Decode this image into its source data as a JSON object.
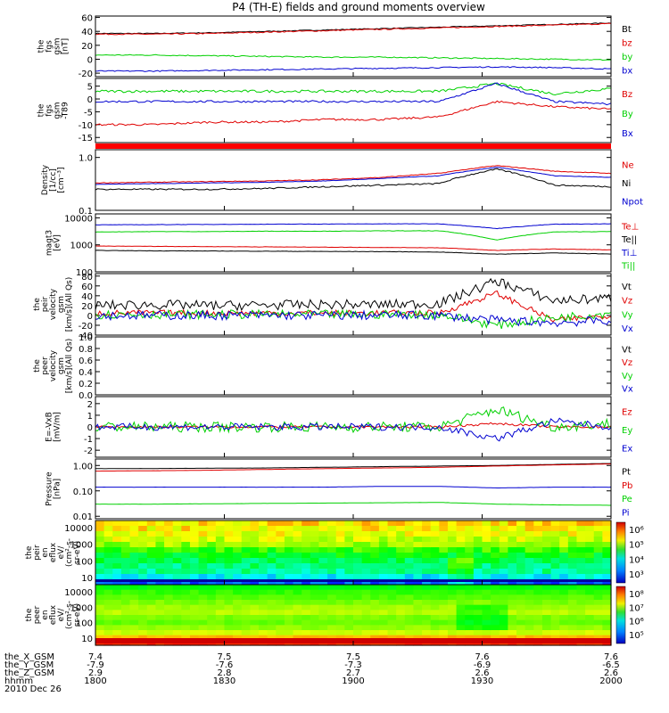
{
  "title": "P4 (TH-E) fields and ground moments overview",
  "date": "2010 Dec 26",
  "colors": {
    "black": "#000000",
    "red": "#e00000",
    "green": "#00d000",
    "blue": "#0000d0"
  },
  "ephem": {
    "rows": [
      {
        "label": "the_X_GSM",
        "values": [
          "7.4",
          "7.5",
          "7.5",
          "7.6",
          "7.6"
        ]
      },
      {
        "label": "the_Y_GSM",
        "values": [
          "-7.9",
          "-7.6",
          "-7.3",
          "-6.9",
          "-6.5"
        ]
      },
      {
        "label": "the_Z_GSM",
        "values": [
          "2.9",
          "2.8",
          "2.7",
          "2.6",
          "2.6"
        ]
      },
      {
        "label": "hhmm",
        "values": [
          "1800",
          "1830",
          "1900",
          "1930",
          "2000"
        ]
      }
    ]
  },
  "colorbar1": {
    "labels": [
      "10⁶",
      "10⁵",
      "10⁴",
      "10³"
    ]
  },
  "colorbar2": {
    "labels": [
      "10⁸",
      "10⁷",
      "10⁶",
      "10⁵"
    ]
  },
  "chart_data": [
    {
      "type": "line",
      "ylabel": [
        "the",
        "fgs",
        "gsm",
        "[nT]"
      ],
      "ticks": [
        "60",
        "40",
        "20",
        "0",
        "-20"
      ],
      "ylim": [
        -25,
        62
      ],
      "series": [
        {
          "name": "Bt",
          "color": "black",
          "values": [
            37,
            37,
            38,
            40,
            42,
            44,
            46,
            48,
            50,
            52
          ],
          "noise": 0.6
        },
        {
          "name": "bz",
          "color": "red",
          "values": [
            36,
            36,
            37,
            39,
            41,
            43,
            45,
            47,
            49,
            51
          ],
          "noise": 0.8
        },
        {
          "name": "by",
          "color": "green",
          "values": [
            6,
            6,
            5,
            4,
            3,
            3,
            2,
            1,
            0,
            -1
          ],
          "noise": 0.8
        },
        {
          "name": "bx",
          "color": "blue",
          "values": [
            -17,
            -17,
            -16,
            -15,
            -14,
            -13,
            -12,
            -11,
            -12,
            -14
          ],
          "noise": 0.8
        }
      ]
    },
    {
      "type": "line",
      "ylabel": [
        "the",
        "fgs",
        "gsm",
        "-T89"
      ],
      "ticks": [
        "5",
        "0",
        "-5",
        "-10",
        "-15"
      ],
      "ylim": [
        -17,
        8
      ],
      "series": [
        {
          "name": "Bz",
          "color": "red",
          "values": [
            -10,
            -10,
            -9,
            -9,
            -8,
            -8,
            -7,
            -1,
            -3,
            -4
          ],
          "noise": 0.4
        },
        {
          "name": "By",
          "color": "green",
          "values": [
            3,
            3,
            3,
            3,
            3,
            3,
            3,
            6,
            2,
            4
          ],
          "noise": 0.5
        },
        {
          "name": "Bx",
          "color": "blue",
          "values": [
            -1,
            -1,
            -1,
            -1,
            -1,
            -1,
            -1,
            6,
            -1,
            -2
          ],
          "noise": 0.4
        }
      ]
    },
    {
      "type": "line",
      "log": true,
      "ylabel": [
        "Density",
        "[1/cc]",
        "[cm⁻³]"
      ],
      "ticks": [
        "1.0",
        "0.1"
      ],
      "tickvals": [
        1.0,
        0.1
      ],
      "ylim": [
        0.1,
        1.4
      ],
      "series": [
        {
          "name": "Ne",
          "color": "red",
          "values": [
            0.33,
            0.34,
            0.35,
            0.36,
            0.38,
            0.42,
            0.5,
            0.7,
            0.55,
            0.5
          ],
          "noise": 0.03
        },
        {
          "name": "Ni",
          "color": "black",
          "values": [
            0.25,
            0.25,
            0.25,
            0.26,
            0.28,
            0.3,
            0.32,
            0.6,
            0.3,
            0.28
          ],
          "noise": 0.06
        },
        {
          "name": "Npot",
          "color": "blue",
          "values": [
            0.31,
            0.32,
            0.33,
            0.34,
            0.36,
            0.4,
            0.45,
            0.65,
            0.45,
            0.42
          ],
          "noise": 0.02
        }
      ]
    },
    {
      "type": "line",
      "log": true,
      "ylabel": [
        "magt3",
        "[eV]"
      ],
      "ticks": [
        "10000",
        "1000",
        "100"
      ],
      "tickvals": [
        10000,
        1000,
        100
      ],
      "ylim": [
        100,
        14000
      ],
      "series": [
        {
          "name": "Te⊥",
          "color": "red",
          "values": [
            900,
            880,
            860,
            840,
            820,
            800,
            780,
            620,
            700,
            650
          ],
          "noise": 0.03
        },
        {
          "name": "Te||",
          "color": "black",
          "values": [
            620,
            600,
            590,
            580,
            570,
            560,
            540,
            450,
            500,
            460
          ],
          "noise": 0.03
        },
        {
          "name": "Ti⊥",
          "color": "blue",
          "values": [
            5500,
            5600,
            5700,
            5800,
            5900,
            6000,
            6000,
            4000,
            5800,
            6000
          ],
          "noise": 0.03
        },
        {
          "name": "Ti||",
          "color": "green",
          "values": [
            3000,
            3100,
            3100,
            3200,
            3200,
            3300,
            3300,
            1500,
            3000,
            3100
          ],
          "noise": 0.03
        }
      ]
    },
    {
      "type": "line",
      "ylabel": [
        "the",
        "peir",
        "velocity",
        "gsm",
        "[km/s](All Qs)"
      ],
      "ticks": [
        "80",
        "60",
        "40",
        "20",
        "0",
        "-20",
        "-40"
      ],
      "ylim": [
        -40,
        85
      ],
      "series": [
        {
          "name": "Vt",
          "color": "black",
          "values": [
            20,
            22,
            20,
            21,
            22,
            22,
            24,
            70,
            30,
            35
          ],
          "noise": 10
        },
        {
          "name": "Vz",
          "color": "red",
          "values": [
            5,
            5,
            5,
            5,
            5,
            5,
            5,
            45,
            -10,
            0
          ],
          "noise": 6
        },
        {
          "name": "Vy",
          "color": "green",
          "values": [
            2,
            2,
            2,
            2,
            2,
            2,
            2,
            -20,
            -5,
            5
          ],
          "noise": 9
        },
        {
          "name": "Vx",
          "color": "blue",
          "values": [
            0,
            0,
            0,
            0,
            0,
            0,
            0,
            -10,
            -15,
            -10
          ],
          "noise": 9
        }
      ]
    },
    {
      "type": "line",
      "ylabel": [
        "the",
        "peer",
        "velocity",
        "gsm",
        "[km/s](All Qs)"
      ],
      "ticks": [
        "1.0",
        "0.8",
        "0.6",
        "0.4",
        "0.2",
        "0.0"
      ],
      "ylim": [
        0,
        1
      ],
      "series": [
        {
          "name": "Vt",
          "color": "black",
          "values": []
        },
        {
          "name": "Vz",
          "color": "red",
          "values": []
        },
        {
          "name": "Vy",
          "color": "green",
          "values": []
        },
        {
          "name": "Vx",
          "color": "blue",
          "values": []
        }
      ]
    },
    {
      "type": "line",
      "ylabel": [
        "E=-VxB",
        "[mV/m]"
      ],
      "ticks": [
        "2",
        "1",
        "0",
        "-1",
        "-2"
      ],
      "ylim": [
        -2.6,
        2.6
      ],
      "series": [
        {
          "name": "Ez",
          "color": "red",
          "values": [
            0,
            0,
            0,
            0,
            0,
            0,
            0,
            0.3,
            0,
            0
          ],
          "noise": 0.1
        },
        {
          "name": "Ey",
          "color": "green",
          "values": [
            0,
            0,
            0,
            0,
            0,
            0,
            0,
            1.5,
            0,
            0.3
          ],
          "noise": 0.45
        },
        {
          "name": "Ex",
          "color": "blue",
          "values": [
            0,
            0,
            0,
            0,
            0,
            0,
            0,
            -1,
            0.5,
            0
          ],
          "noise": 0.3
        }
      ]
    },
    {
      "type": "line",
      "log": true,
      "ylabel": [
        "Pressure",
        "[nPa]"
      ],
      "ticks": [
        "1.00",
        "0.10",
        "0.01"
      ],
      "tickvals": [
        1,
        0.1,
        0.01
      ],
      "ylim": [
        0.008,
        1.8
      ],
      "series": [
        {
          "name": "Pt",
          "color": "black",
          "values": [
            0.75,
            0.76,
            0.78,
            0.8,
            0.85,
            0.9,
            0.95,
            1.0,
            1.1,
            1.2
          ],
          "noise": 0.01
        },
        {
          "name": "Pb",
          "color": "red",
          "values": [
            0.6,
            0.62,
            0.65,
            0.7,
            0.75,
            0.8,
            0.85,
            0.95,
            1.05,
            1.15
          ],
          "noise": 0.01
        },
        {
          "name": "Pe",
          "color": "green",
          "values": [
            0.03,
            0.03,
            0.031,
            0.032,
            0.033,
            0.034,
            0.035,
            0.03,
            0.028,
            0.027
          ],
          "noise": 0.01
        },
        {
          "name": "Pi",
          "color": "blue",
          "values": [
            0.14,
            0.14,
            0.14,
            0.14,
            0.14,
            0.15,
            0.15,
            0.13,
            0.14,
            0.14
          ],
          "noise": 0.01
        }
      ]
    },
    {
      "type": "heatmap",
      "ylabel": [
        "the",
        "peir",
        "en",
        "eflux",
        "eV/",
        "(cm²-s-",
        "sr-eV)"
      ],
      "ticks": [
        "10000",
        "1000",
        "100",
        "10"
      ]
    },
    {
      "type": "heatmap",
      "ylabel": [
        "the",
        "peer",
        "en",
        "eflux",
        "eV/",
        "(cm²-s-",
        "sr-eV)"
      ],
      "ticks": [
        "10000",
        "1000",
        "100",
        "10"
      ]
    }
  ]
}
